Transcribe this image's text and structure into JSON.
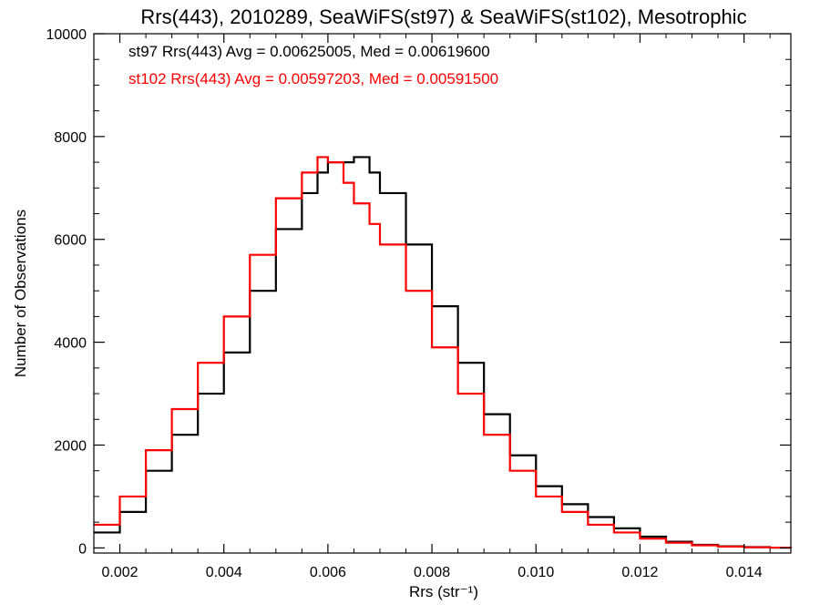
{
  "chart_data": {
    "type": "line",
    "step": true,
    "title": "Rrs(443), 2010289, SeaWiFS(st97) & SeaWiFS(st102), Mesotrophic",
    "xlabel": "Rrs (str⁻¹)",
    "ylabel": "Number of Observations",
    "xlim": [
      0.0015,
      0.0149
    ],
    "ylim": [
      -100,
      10000
    ],
    "xticks": [
      0.002,
      0.004,
      0.006,
      0.008,
      0.01,
      0.012,
      0.014
    ],
    "xtick_labels": [
      "0.002",
      "0.004",
      "0.006",
      "0.008",
      "0.010",
      "0.012",
      "0.014"
    ],
    "yticks": [
      0,
      2000,
      4000,
      6000,
      8000,
      10000
    ],
    "ytick_labels": [
      "0",
      "2000",
      "4000",
      "6000",
      "8000",
      "10000"
    ],
    "grid": false,
    "legend_position": "top-left",
    "series": [
      {
        "name": "st97",
        "color": "#000000",
        "annotation": "st97 Rrs(443) Avg = 0.00625005, Med = 0.00619600",
        "x": [
          0.0015,
          0.002,
          0.0025,
          0.003,
          0.0035,
          0.004,
          0.0045,
          0.005,
          0.0055,
          0.0058,
          0.006,
          0.0063,
          0.0065,
          0.0068,
          0.007,
          0.0075,
          0.008,
          0.0085,
          0.009,
          0.0095,
          0.01,
          0.0105,
          0.011,
          0.0115,
          0.012,
          0.0125,
          0.013,
          0.0135,
          0.014,
          0.0145,
          0.0149
        ],
        "y": [
          300,
          700,
          1500,
          2200,
          3000,
          3800,
          5000,
          6200,
          6900,
          7300,
          7500,
          7500,
          7600,
          7300,
          6900,
          5900,
          4700,
          3600,
          2600,
          1800,
          1200,
          850,
          600,
          380,
          220,
          120,
          60,
          30,
          15,
          5,
          0
        ]
      },
      {
        "name": "st102",
        "color": "#ff0000",
        "annotation": "st102 Rrs(443) Avg = 0.00597203, Med = 0.00591500",
        "x": [
          0.0015,
          0.002,
          0.0025,
          0.003,
          0.0035,
          0.004,
          0.0045,
          0.005,
          0.0055,
          0.0058,
          0.006,
          0.0063,
          0.0065,
          0.0068,
          0.007,
          0.0075,
          0.008,
          0.0085,
          0.009,
          0.0095,
          0.01,
          0.0105,
          0.011,
          0.0115,
          0.012,
          0.0125,
          0.013,
          0.0135,
          0.014,
          0.0145,
          0.0149
        ],
        "y": [
          450,
          1000,
          1900,
          2700,
          3600,
          4500,
          5700,
          6800,
          7300,
          7600,
          7500,
          7100,
          6700,
          6300,
          5900,
          5000,
          3900,
          3000,
          2200,
          1500,
          1000,
          700,
          450,
          300,
          180,
          100,
          50,
          25,
          12,
          5,
          0
        ]
      }
    ]
  }
}
